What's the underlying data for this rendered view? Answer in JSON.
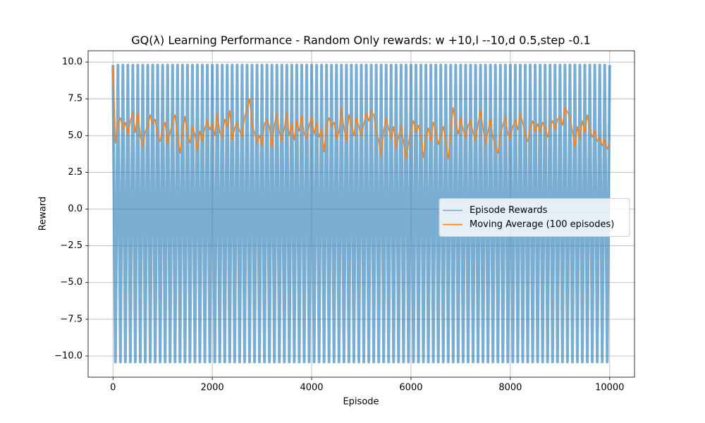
{
  "chart_data": {
    "type": "line",
    "title": "GQ(λ) Learning Performance - Random Only rewards: w +10,l --10,d 0.5,step -0.1",
    "x_label": "Episode",
    "y_label": "Reward",
    "x": [
      0,
      50,
      100,
      150,
      200,
      250,
      300,
      350,
      400,
      450,
      500,
      550,
      600,
      650,
      700,
      750,
      800,
      850,
      900,
      950,
      1000,
      1050,
      1100,
      1150,
      1200,
      1250,
      1300,
      1350,
      1400,
      1450,
      1500,
      1550,
      1600,
      1650,
      1700,
      1750,
      1800,
      1850,
      1900,
      1950,
      2000,
      2050,
      2100,
      2150,
      2200,
      2250,
      2300,
      2350,
      2400,
      2450,
      2500,
      2550,
      2600,
      2650,
      2700,
      2750,
      2800,
      2850,
      2900,
      2950,
      3000,
      3050,
      3100,
      3150,
      3200,
      3250,
      3300,
      3350,
      3400,
      3450,
      3500,
      3550,
      3600,
      3650,
      3700,
      3750,
      3800,
      3850,
      3900,
      3950,
      4000,
      4050,
      4100,
      4150,
      4200,
      4250,
      4300,
      4350,
      4400,
      4450,
      4500,
      4550,
      4600,
      4650,
      4700,
      4750,
      4800,
      4850,
      4900,
      4950,
      5000,
      5050,
      5100,
      5150,
      5200,
      5250,
      5300,
      5350,
      5400,
      5450,
      5500,
      5550,
      5600,
      5650,
      5700,
      5750,
      5800,
      5850,
      5900,
      5950,
      6000,
      6050,
      6100,
      6150,
      6200,
      6250,
      6300,
      6350,
      6400,
      6450,
      6500,
      6550,
      6600,
      6650,
      6700,
      6750,
      6800,
      6850,
      6900,
      6950,
      7000,
      7050,
      7100,
      7150,
      7200,
      7250,
      7300,
      7350,
      7400,
      7450,
      7500,
      7550,
      7600,
      7650,
      7700,
      7750,
      7800,
      7850,
      7900,
      7950,
      8000,
      8050,
      8100,
      8150,
      8200,
      8250,
      8300,
      8350,
      8400,
      8450,
      8500,
      8550,
      8600,
      8650,
      8700,
      8750,
      8800,
      8850,
      8900,
      8950,
      9000,
      9050,
      9100,
      9150,
      9200,
      9250,
      9300,
      9350,
      9400,
      9450,
      9500,
      9550,
      9600,
      9650,
      9700,
      9750,
      9800,
      9850,
      9900,
      9950,
      10000
    ],
    "series": [
      {
        "name": "Episode Rewards",
        "color": "#1f77b4",
        "alpha": 0.6,
        "values": [
          9.8,
          -10.4,
          9.8,
          -10.4,
          9.8,
          -10.4,
          9.8,
          -10.4,
          9.8,
          -10.4,
          9.8,
          -10.4,
          9.8,
          -10.4,
          9.8,
          -10.4,
          9.8,
          -10.4,
          9.8,
          -10.4,
          9.8,
          -10.4,
          9.8,
          -10.4,
          9.8,
          -10.4,
          9.8,
          -10.4,
          9.8,
          -10.4,
          9.8,
          -10.4,
          9.8,
          -10.4,
          9.8,
          -10.4,
          9.8,
          -10.4,
          9.8,
          -10.4,
          9.8,
          -10.4,
          9.8,
          -10.4,
          9.8,
          -10.4,
          9.8,
          -10.4,
          9.8,
          -10.4,
          9.8,
          -10.4,
          9.8,
          -10.4,
          9.8,
          -10.4,
          9.8,
          -10.4,
          9.8,
          -10.4,
          9.8,
          -10.4,
          9.8,
          -10.4,
          9.8,
          -10.4,
          9.8,
          -10.4,
          9.8,
          -10.4,
          9.8,
          -10.4,
          9.8,
          -10.4,
          9.8,
          -10.4,
          9.8,
          -10.4,
          9.8,
          -10.4,
          9.8,
          -10.4,
          9.8,
          -10.4,
          9.8,
          -10.4,
          9.8,
          -10.4,
          9.8,
          -10.4,
          9.8,
          -10.4,
          9.8,
          -10.4,
          9.8,
          -10.4,
          9.8,
          -10.4,
          9.8,
          -10.4,
          9.8,
          -10.4,
          9.8,
          -10.4,
          9.8,
          -10.4,
          9.8,
          -10.4,
          9.8,
          -10.4,
          9.8,
          -10.4,
          9.8,
          -10.4,
          9.8,
          -10.4,
          9.8,
          -10.4,
          9.8,
          -10.4,
          9.8,
          -10.4,
          9.8,
          -10.4,
          9.8,
          -10.4,
          9.8,
          -10.4,
          9.8,
          -10.4,
          9.8,
          -10.4,
          9.8,
          -10.4,
          9.8,
          -10.4,
          9.8,
          -10.4,
          9.8,
          -10.4,
          9.8,
          -10.4,
          9.8,
          -10.4,
          9.8,
          -10.4,
          9.8,
          -10.4,
          9.8,
          -10.4,
          9.8,
          -10.4,
          9.8,
          -10.4,
          9.8,
          -10.4,
          9.8,
          -10.4,
          9.8,
          -10.4,
          9.8,
          -10.4,
          9.8,
          -10.4,
          9.8,
          -10.4,
          9.8,
          -10.4,
          9.8,
          -10.4,
          9.8,
          -10.4,
          9.8,
          -10.4,
          9.8,
          -10.4,
          9.8,
          -10.4,
          9.8,
          -10.4,
          9.8,
          -10.4,
          9.8,
          -10.4,
          9.8,
          -10.4,
          9.8,
          -10.4,
          9.8,
          -10.4,
          9.8,
          -10.4,
          9.8,
          -10.4,
          9.8,
          -10.4,
          9.8,
          -10.4,
          9.8,
          -10.4,
          9.8
        ]
      },
      {
        "name": "Moving Average (100 episodes)",
        "color": "#ff7f0e",
        "values": [
          9.7,
          4.5,
          5.8,
          6.2,
          5.4,
          5.9,
          5.1,
          6.0,
          6.6,
          5.2,
          6.5,
          5.0,
          4.2,
          5.3,
          5.6,
          6.4,
          5.8,
          6.1,
          5.0,
          4.6,
          5.5,
          5.9,
          4.4,
          5.2,
          6.0,
          6.4,
          4.8,
          3.8,
          5.2,
          6.3,
          5.0,
          4.5,
          5.6,
          5.1,
          4.0,
          5.3,
          4.6,
          5.5,
          6.0,
          5.4,
          5.8,
          5.0,
          6.5,
          5.2,
          4.9,
          6.1,
          5.6,
          6.7,
          4.7,
          5.5,
          5.9,
          5.3,
          4.9,
          6.3,
          6.8,
          7.5,
          5.8,
          5.2,
          4.5,
          5.0,
          4.3,
          5.8,
          6.1,
          5.6,
          4.2,
          5.7,
          6.5,
          5.2,
          4.6,
          5.5,
          6.6,
          5.0,
          5.8,
          4.7,
          6.0,
          5.3,
          6.4,
          5.1,
          4.8,
          5.7,
          6.3,
          5.1,
          5.9,
          4.9,
          5.4,
          3.9,
          5.7,
          6.2,
          5.6,
          5.9,
          4.8,
          5.2,
          6.9,
          5.5,
          4.6,
          6.4,
          5.7,
          5.0,
          6.2,
          5.6,
          4.9,
          5.8,
          6.5,
          6.0,
          6.7,
          6.4,
          5.2,
          4.7,
          3.6,
          5.3,
          6.2,
          5.5,
          4.8,
          5.6,
          4.1,
          4.9,
          5.7,
          4.6,
          3.4,
          4.5,
          5.4,
          6.0,
          5.2,
          5.7,
          4.9,
          3.5,
          4.8,
          5.5,
          4.6,
          5.9,
          5.3,
          4.4,
          5.0,
          5.6,
          4.5,
          3.4,
          5.2,
          6.9,
          5.8,
          5.1,
          6.2,
          5.4,
          4.8,
          5.7,
          6.0,
          5.2,
          4.6,
          5.8,
          6.7,
          5.5,
          4.4,
          5.3,
          6.1,
          4.9,
          4.2,
          3.8,
          5.0,
          5.7,
          6.3,
          5.1,
          4.8,
          5.6,
          6.1,
          5.4,
          6.5,
          5.9,
          5.0,
          4.6,
          5.5,
          6.0,
          5.3,
          5.8,
          5.2,
          5.9,
          5.5,
          4.9,
          5.7,
          6.0,
          5.4,
          6.1,
          6.3,
          5.7,
          6.9,
          6.6,
          6.2,
          5.3,
          4.2,
          5.6,
          4.8,
          6.0,
          5.2,
          6.4,
          5.5,
          4.9,
          5.3,
          4.6,
          4.9,
          4.3,
          4.7,
          4.1,
          4.4
        ]
      }
    ],
    "xlim": [
      -500,
      10500
    ],
    "xticks": [
      0,
      2000,
      4000,
      6000,
      8000,
      10000
    ],
    "ylim": [
      -11.44,
      10.77
    ],
    "yticks": [
      {
        "value": -10,
        "label": "−10.0"
      },
      {
        "value": -7.5,
        "label": "−7.5"
      },
      {
        "value": -5,
        "label": "−5.0"
      },
      {
        "value": -2.5,
        "label": "−2.5"
      },
      {
        "value": 0,
        "label": "0.0"
      },
      2.5,
      {
        "value": 5,
        "label": "5.0"
      },
      7.5,
      {
        "value": 10,
        "label": "10.0"
      }
    ],
    "grid": true,
    "legend": "center right"
  }
}
